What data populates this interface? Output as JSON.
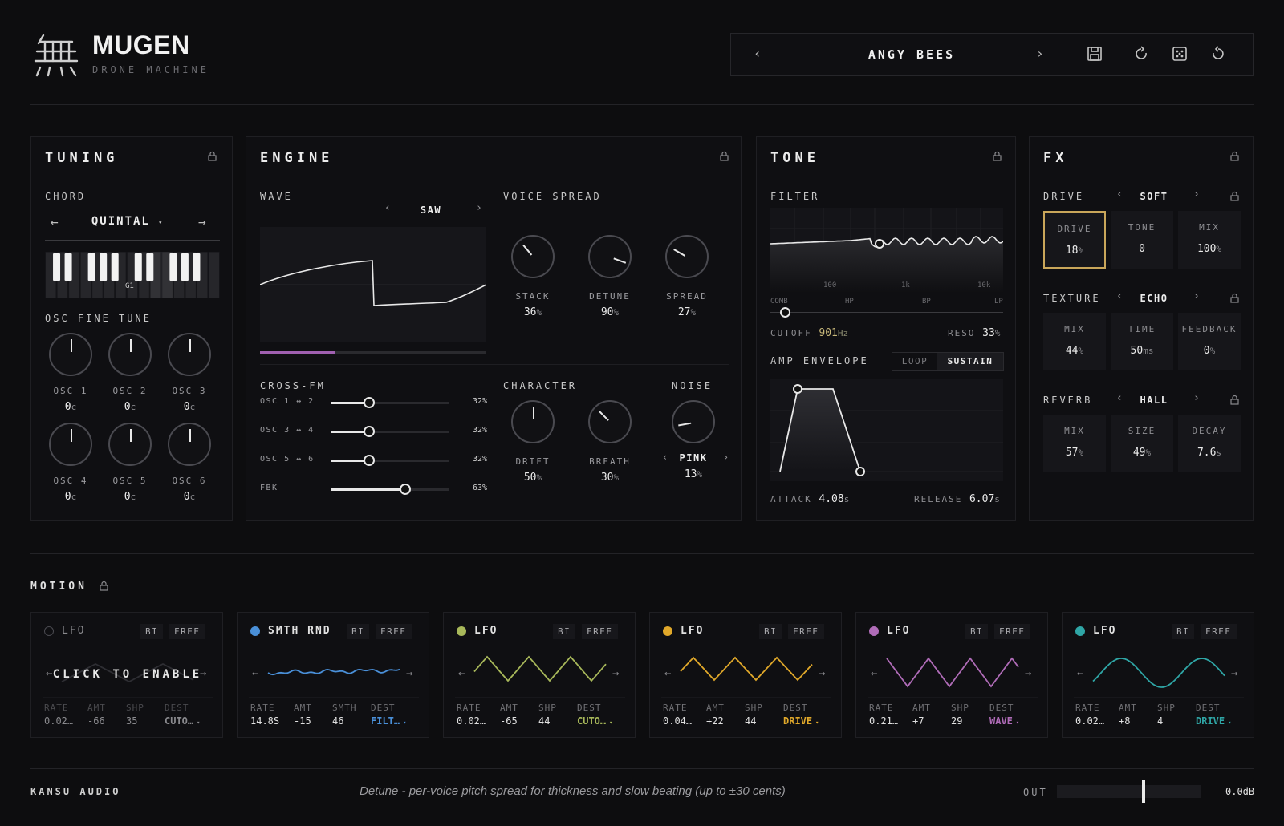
{
  "header": {
    "brand": "MUGEN",
    "subtitle": "DRONE MACHINE",
    "preset_name": "ANGY BEES"
  },
  "tuning": {
    "title": "TUNING",
    "chord_label": "CHORD",
    "chord_value": "QUINTAL",
    "keyboard_note": "G1",
    "fine_tune_label": "OSC FINE TUNE",
    "oscs": [
      {
        "label": "OSC 1",
        "value": "0",
        "unit": "c",
        "angle": 0
      },
      {
        "label": "OSC 2",
        "value": "0",
        "unit": "c",
        "angle": 0
      },
      {
        "label": "OSC 3",
        "value": "0",
        "unit": "c",
        "angle": 0
      },
      {
        "label": "OSC 4",
        "value": "0",
        "unit": "c",
        "angle": 0
      },
      {
        "label": "OSC 5",
        "value": "0",
        "unit": "c",
        "angle": 0
      },
      {
        "label": "OSC 6",
        "value": "0",
        "unit": "c",
        "angle": 0
      }
    ]
  },
  "engine": {
    "title": "ENGINE",
    "wave_label": "WAVE",
    "wave_value": "SAW",
    "wave_position": 0.33,
    "voice_spread_label": "VOICE SPREAD",
    "voice_knobs": [
      {
        "label": "STACK",
        "value": "36",
        "unit": "%",
        "angle": -40
      },
      {
        "label": "DETUNE",
        "value": "90",
        "unit": "%",
        "angle": 110
      },
      {
        "label": "SPREAD",
        "value": "27",
        "unit": "%",
        "angle": -60
      }
    ],
    "crossfm_label": "CROSS-FM",
    "crossfm": [
      {
        "label": "OSC 1 ↔ 2",
        "value": "32%",
        "level": 0.32
      },
      {
        "label": "OSC 3 ↔ 4",
        "value": "32%",
        "level": 0.32
      },
      {
        "label": "OSC 5 ↔ 6",
        "value": "32%",
        "level": 0.32
      },
      {
        "label": "FBK",
        "value": "63%",
        "level": 0.63
      }
    ],
    "character_label": "CHARACTER",
    "character_knobs": [
      {
        "label": "DRIFT",
        "value": "50",
        "unit": "%",
        "angle": 0
      },
      {
        "label": "BREATH",
        "value": "30",
        "unit": "%",
        "angle": -45
      }
    ],
    "noise_label": "NOISE",
    "noise_type": "PINK",
    "noise_value": "13",
    "noise_unit": "%",
    "noise_angle": -100
  },
  "tone": {
    "title": "TONE",
    "filter_label": "FILTER",
    "freq_ticks": [
      "100",
      "1k",
      "10k"
    ],
    "modes": [
      "COMB",
      "HP",
      "BP",
      "LP"
    ],
    "cutoff_label": "CUTOFF",
    "cutoff_value": "901",
    "cutoff_unit": "Hz",
    "reso_label": "RESO",
    "reso_value": "33",
    "reso_unit": "%",
    "amp_label": "AMP ENVELOPE",
    "loop_label": "LOOP",
    "sustain_label": "SUSTAIN",
    "attack_label": "ATTACK",
    "attack_value": "4.08",
    "attack_unit": "s",
    "release_label": "RELEASE",
    "release_value": "6.07",
    "release_unit": "s"
  },
  "fx": {
    "title": "FX",
    "drive": {
      "label": "DRIVE",
      "mode": "SOFT",
      "cells": [
        {
          "t": "DRIVE",
          "v": "18",
          "u": "%"
        },
        {
          "t": "TONE",
          "v": "0",
          "u": ""
        },
        {
          "t": "MIX",
          "v": "100",
          "u": "%"
        }
      ]
    },
    "texture": {
      "label": "TEXTURE",
      "mode": "ECHO",
      "cells": [
        {
          "t": "MIX",
          "v": "44",
          "u": "%"
        },
        {
          "t": "TIME",
          "v": "50",
          "u": "ms"
        },
        {
          "t": "FEEDBACK",
          "v": "0",
          "u": "%"
        }
      ]
    },
    "reverb": {
      "label": "REVERB",
      "mode": "HALL",
      "cells": [
        {
          "t": "MIX",
          "v": "57",
          "u": "%"
        },
        {
          "t": "SIZE",
          "v": "49",
          "u": "%"
        },
        {
          "t": "DECAY",
          "v": "7.6",
          "u": "s"
        }
      ]
    }
  },
  "motion": {
    "title": "MOTION",
    "click_to_enable": "CLICK TO ENABLE",
    "lfos": [
      {
        "name": "LFO",
        "color": "#2a2a2e",
        "bi": "BI",
        "free": "FREE",
        "labels": [
          "RATE",
          "AMT",
          "SHP",
          "DEST"
        ],
        "values": [
          "0.02…",
          "-66",
          "35",
          "CUTO…"
        ],
        "dest_color": "#9a9a9e",
        "enabled": false
      },
      {
        "name": "SMTH RND",
        "color": "#4a90d9",
        "bi": "BI",
        "free": "FREE",
        "labels": [
          "RATE",
          "AMT",
          "SMTH",
          "DEST"
        ],
        "values": [
          "14.8S",
          "-15",
          "46",
          "FILT…"
        ],
        "dest_color": "#4a90d9",
        "enabled": true
      },
      {
        "name": "LFO",
        "color": "#a8b85a",
        "bi": "BI",
        "free": "FREE",
        "labels": [
          "RATE",
          "AMT",
          "SHP",
          "DEST"
        ],
        "values": [
          "0.02…",
          "-65",
          "44",
          "CUTO…"
        ],
        "dest_color": "#a8b85a",
        "enabled": true
      },
      {
        "name": "LFO",
        "color": "#e0a82a",
        "bi": "BI",
        "free": "FREE",
        "labels": [
          "RATE",
          "AMT",
          "SHP",
          "DEST"
        ],
        "values": [
          "0.04…",
          "+22",
          "44",
          "DRIVE"
        ],
        "dest_color": "#e0a82a",
        "enabled": true
      },
      {
        "name": "LFO",
        "color": "#b06cb8",
        "bi": "BI",
        "free": "FREE",
        "labels": [
          "RATE",
          "AMT",
          "SHP",
          "DEST"
        ],
        "values": [
          "0.21…",
          "+7",
          "29",
          "WAVE"
        ],
        "dest_color": "#b06cb8",
        "enabled": true
      },
      {
        "name": "LFO",
        "color": "#2fa6a6",
        "bi": "BI",
        "free": "FREE",
        "labels": [
          "RATE",
          "AMT",
          "SHP",
          "DEST"
        ],
        "values": [
          "0.02…",
          "+8",
          "4",
          "DRIVE"
        ],
        "dest_color": "#2fa6a6",
        "enabled": true
      }
    ]
  },
  "footer": {
    "company": "KANSU AUDIO",
    "hint": "Detune - per-voice pitch spread for thickness and slow beating (up to ±30 cents)",
    "out_label": "OUT",
    "out_value": "0.0dB",
    "out_level": 0.6
  },
  "colors": {
    "accent_drive": "#c9a65a",
    "wave_bar": "#a060b0",
    "cutoff_value": "#c8b87a"
  }
}
